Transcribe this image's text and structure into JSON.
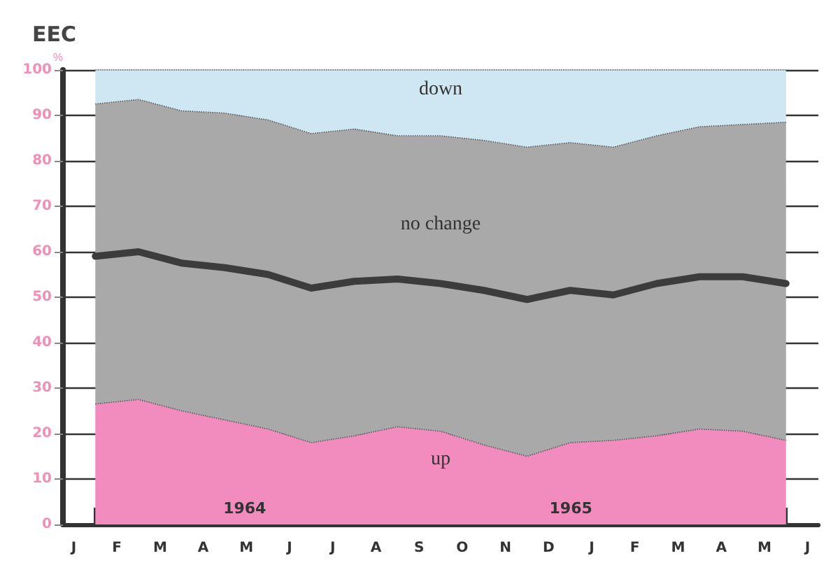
{
  "chart_data": {
    "type": "area",
    "title": "EEC",
    "ylabel": "%",
    "stacked": true,
    "categories": [
      "J",
      null,
      "F",
      null,
      "M",
      null,
      "A",
      null,
      "M",
      null,
      "J",
      null,
      "J",
      null,
      "A",
      null,
      "S",
      null,
      "O",
      null,
      "N",
      null,
      "D",
      null,
      "J",
      null,
      "F",
      null,
      "M",
      null,
      "A",
      null,
      "M",
      null,
      "J"
    ],
    "series": [
      {
        "name": "up",
        "color": "#f28cbf",
        "values": [
          null,
          26.5,
          null,
          27.5,
          null,
          25,
          null,
          23,
          null,
          21,
          null,
          18,
          null,
          19.5,
          null,
          21.5,
          null,
          20.5,
          null,
          17.5,
          null,
          15,
          null,
          18,
          null,
          18.5,
          null,
          19.5,
          null,
          21,
          null,
          20.5,
          null,
          18.5,
          null
        ]
      },
      {
        "name": "no change",
        "color": "#a9a9a9",
        "values": [
          null,
          66,
          null,
          66,
          null,
          66,
          null,
          67.5,
          null,
          68,
          null,
          68,
          null,
          67.5,
          null,
          64,
          null,
          65,
          null,
          67,
          null,
          68,
          null,
          66,
          null,
          64.5,
          null,
          66,
          null,
          66.5,
          null,
          67.5,
          null,
          70,
          null
        ]
      },
      {
        "name": "down",
        "color": "#cfe6f3",
        "values": [
          null,
          7.5,
          null,
          6.5,
          null,
          9,
          null,
          9.5,
          null,
          11,
          null,
          14,
          null,
          13,
          null,
          14.5,
          null,
          14.5,
          null,
          15.5,
          null,
          17,
          null,
          16,
          null,
          17,
          null,
          14.5,
          null,
          12.5,
          null,
          12,
          null,
          11.5,
          null
        ]
      },
      {
        "type": "line",
        "color": "#3c3c3c",
        "values": [
          null,
          59,
          null,
          60,
          null,
          57.5,
          null,
          56.5,
          null,
          55,
          null,
          52,
          null,
          53.5,
          null,
          54,
          null,
          53,
          null,
          51.5,
          null,
          49.5,
          null,
          51.5,
          null,
          50.5,
          null,
          53,
          null,
          54.5,
          null,
          54.5,
          null,
          53,
          null
        ]
      }
    ],
    "ylim": [
      0,
      100
    ],
    "yticks": [
      0,
      10,
      20,
      30,
      40,
      50,
      60,
      70,
      80,
      90,
      100
    ],
    "grid": "y",
    "legend": false,
    "marker": "none",
    "annotations": [
      "1964",
      "1965"
    ]
  }
}
